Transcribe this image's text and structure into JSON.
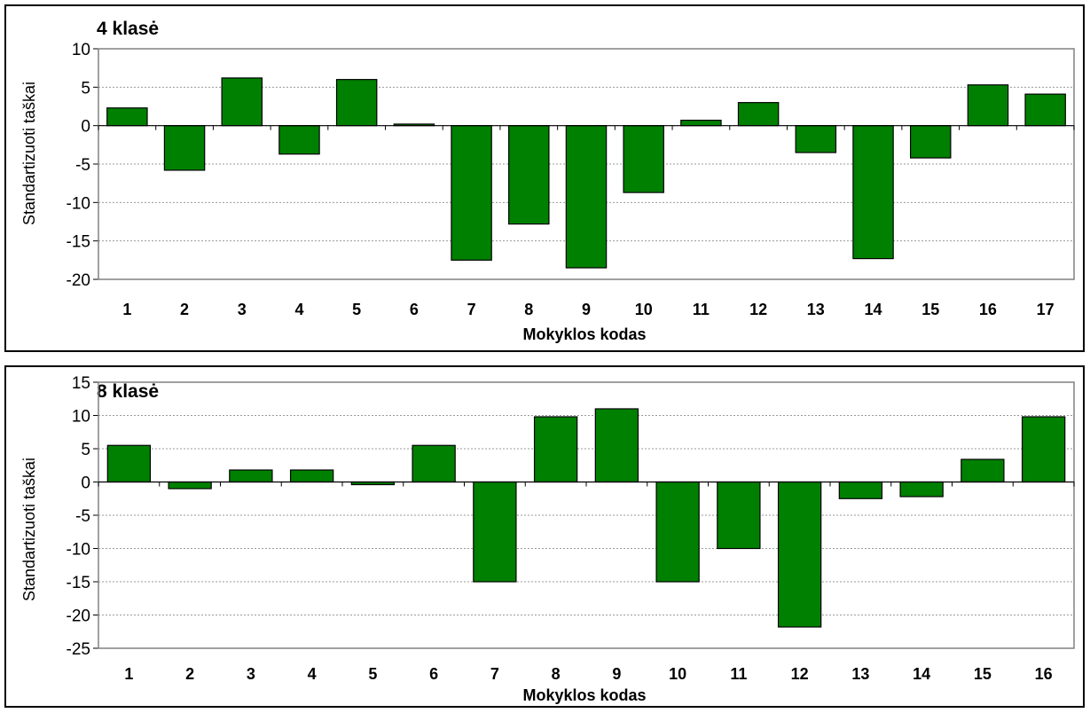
{
  "bar_color": "#008000",
  "chart_data": [
    {
      "type": "bar",
      "title": "4 klasė",
      "xlabel": "Mokyklos kodas",
      "ylabel": "Standartizuoti taškai",
      "ylim": [
        -20,
        10
      ],
      "yticks": [
        10,
        5,
        0,
        -5,
        -10,
        -15,
        -20
      ],
      "grid": true,
      "categories": [
        "1",
        "2",
        "3",
        "4",
        "5",
        "6",
        "7",
        "8",
        "9",
        "10",
        "11",
        "12",
        "13",
        "14",
        "15",
        "16",
        "17"
      ],
      "values": [
        2.3,
        -5.8,
        6.2,
        -3.7,
        6.0,
        0.2,
        -17.5,
        -12.8,
        -18.5,
        -8.7,
        0.7,
        3.0,
        -3.5,
        -17.3,
        -4.2,
        5.3,
        4.1
      ]
    },
    {
      "type": "bar",
      "title": "8 klasė",
      "xlabel": "Mokyklos kodas",
      "ylabel": "Standartizuoti taškai",
      "ylim": [
        -25,
        15
      ],
      "yticks": [
        15,
        10,
        5,
        0,
        -5,
        -10,
        -15,
        -20,
        -25
      ],
      "grid": true,
      "categories": [
        "1",
        "2",
        "3",
        "4",
        "5",
        "6",
        "7",
        "8",
        "9",
        "10",
        "11",
        "12",
        "13",
        "14",
        "15",
        "16"
      ],
      "values": [
        5.5,
        -1.0,
        1.8,
        1.8,
        -0.4,
        5.5,
        -15.0,
        9.8,
        11.0,
        -15.0,
        -10.0,
        -21.8,
        -2.5,
        -2.2,
        3.4,
        9.8
      ]
    }
  ]
}
